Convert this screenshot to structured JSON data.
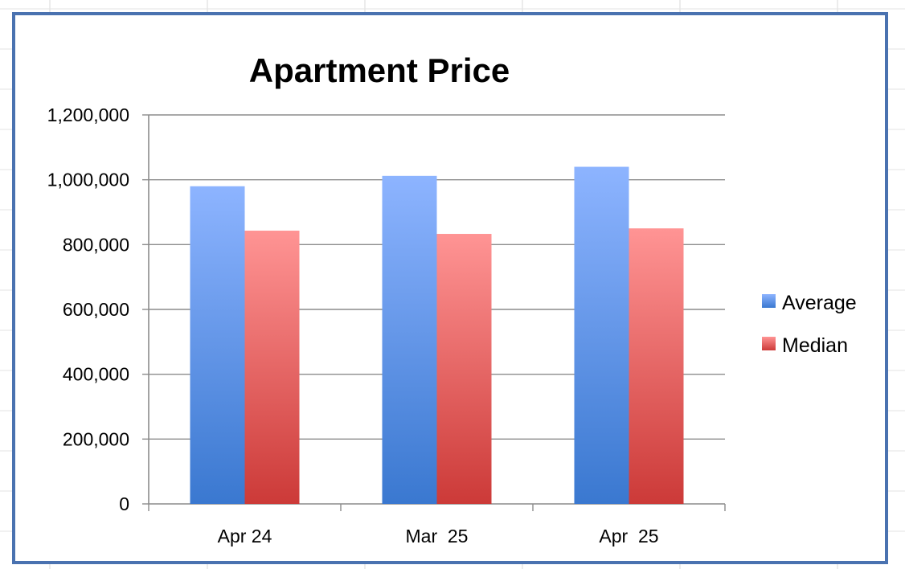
{
  "chart_data": {
    "type": "bar",
    "title": "Apartment Price",
    "xlabel": "",
    "ylabel": "",
    "categories": [
      "Apr 24",
      "Mar  25",
      "Apr  25"
    ],
    "series": [
      {
        "name": "Average",
        "values": [
          980000,
          1012000,
          1040000
        ]
      },
      {
        "name": "Median",
        "values": [
          843000,
          833000,
          850000
        ]
      }
    ],
    "ylim": [
      0,
      1200000
    ],
    "yticks": [
      0,
      200000,
      400000,
      600000,
      800000,
      1000000,
      1200000
    ],
    "ytick_labels": [
      "0",
      "200,000",
      "400,000",
      "600,000",
      "800,000",
      "1,000,000",
      "1,200,000"
    ],
    "grid": true,
    "legend_position": "right",
    "colors": {
      "Average": {
        "top": "#8db4ff",
        "bottom": "#3a78d0"
      },
      "Median": {
        "top": "#ff9494",
        "bottom": "#cc3a38"
      },
      "frame": "#4a72b0",
      "gridline": "#8c8c8c"
    }
  }
}
